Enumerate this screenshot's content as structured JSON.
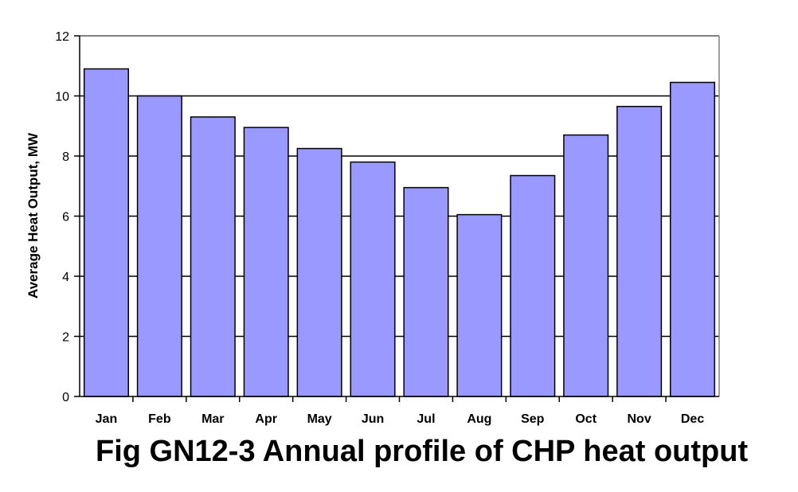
{
  "caption": "Fig GN12-3 Annual profile of CHP heat output",
  "chart_data": {
    "type": "bar",
    "title": "",
    "xlabel": "",
    "ylabel": "Average Heat Output, MW",
    "categories": [
      "Jan",
      "Feb",
      "Mar",
      "Apr",
      "May",
      "Jun",
      "Jul",
      "Aug",
      "Sep",
      "Oct",
      "Nov",
      "Dec"
    ],
    "values": [
      10.9,
      10.0,
      9.3,
      8.95,
      8.25,
      7.8,
      6.95,
      6.05,
      7.35,
      8.7,
      9.65,
      10.45
    ],
    "ylim": [
      0,
      12
    ],
    "yticks": [
      0,
      2,
      4,
      6,
      8,
      10,
      12
    ],
    "grid": true,
    "legend": "none",
    "bar_color": "#9999ff",
    "bar_edge_color": "#000000",
    "grid_color": "#000000"
  }
}
